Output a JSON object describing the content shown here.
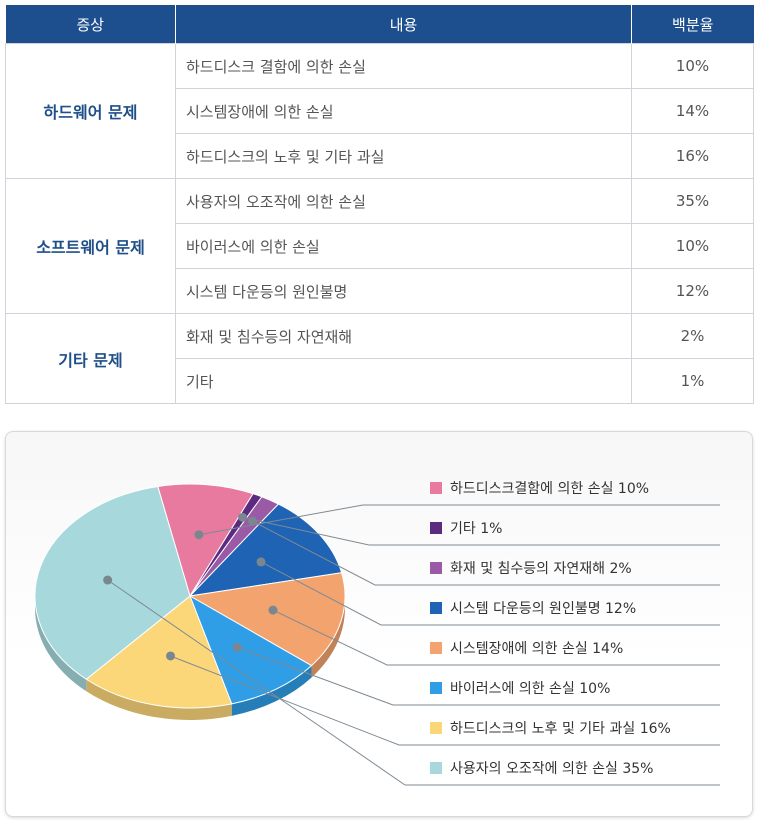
{
  "table": {
    "headers": [
      "증상",
      "내용",
      "백분율"
    ],
    "groups": [
      {
        "category": "하드웨어 문제",
        "rows": [
          {
            "desc": "하드디스크 결함에 의한 손실",
            "pct": "10%"
          },
          {
            "desc": "시스템장애에 의한 손실",
            "pct": "14%"
          },
          {
            "desc": "하드디스크의 노후 및 기타 과실",
            "pct": "16%"
          }
        ]
      },
      {
        "category": "소프트웨어 문제",
        "rows": [
          {
            "desc": "사용자의 오조작에 의한 손실",
            "pct": "35%"
          },
          {
            "desc": "바이러스에 의한 손실",
            "pct": "10%"
          },
          {
            "desc": "시스템 다운등의 원인불명",
            "pct": "12%"
          }
        ]
      },
      {
        "category": "기타 문제",
        "rows": [
          {
            "desc": "화재 및 침수등의 자연재해",
            "pct": "2%"
          },
          {
            "desc": "기타",
            "pct": "1%"
          }
        ]
      }
    ]
  },
  "chart_data": {
    "type": "pie",
    "legend_position": "right",
    "slices": [
      {
        "label": "하드디스크결함에 의한 손실 10%",
        "value": 10,
        "color": "#e8799f"
      },
      {
        "label": "기타 1%",
        "value": 1,
        "color": "#5c2a80"
      },
      {
        "label": "화재 및 침수등의 자연재해 2%",
        "value": 2,
        "color": "#9b5aa6"
      },
      {
        "label": "시스템 다운등의 원인불명 12%",
        "value": 12,
        "color": "#1f63b5"
      },
      {
        "label": "시스템장애에 의한 손실 14%",
        "value": 14,
        "color": "#f3a36e"
      },
      {
        "label": "바이러스에 의한 손실 10%",
        "value": 10,
        "color": "#2f9ee6"
      },
      {
        "label": "하드디스크의 노후 및 기타 과실 16%",
        "value": 16,
        "color": "#fbd77a"
      },
      {
        "label": "사용자의 오조작에 의한 손실 35%",
        "value": 35,
        "color": "#a7d9dc"
      }
    ]
  }
}
